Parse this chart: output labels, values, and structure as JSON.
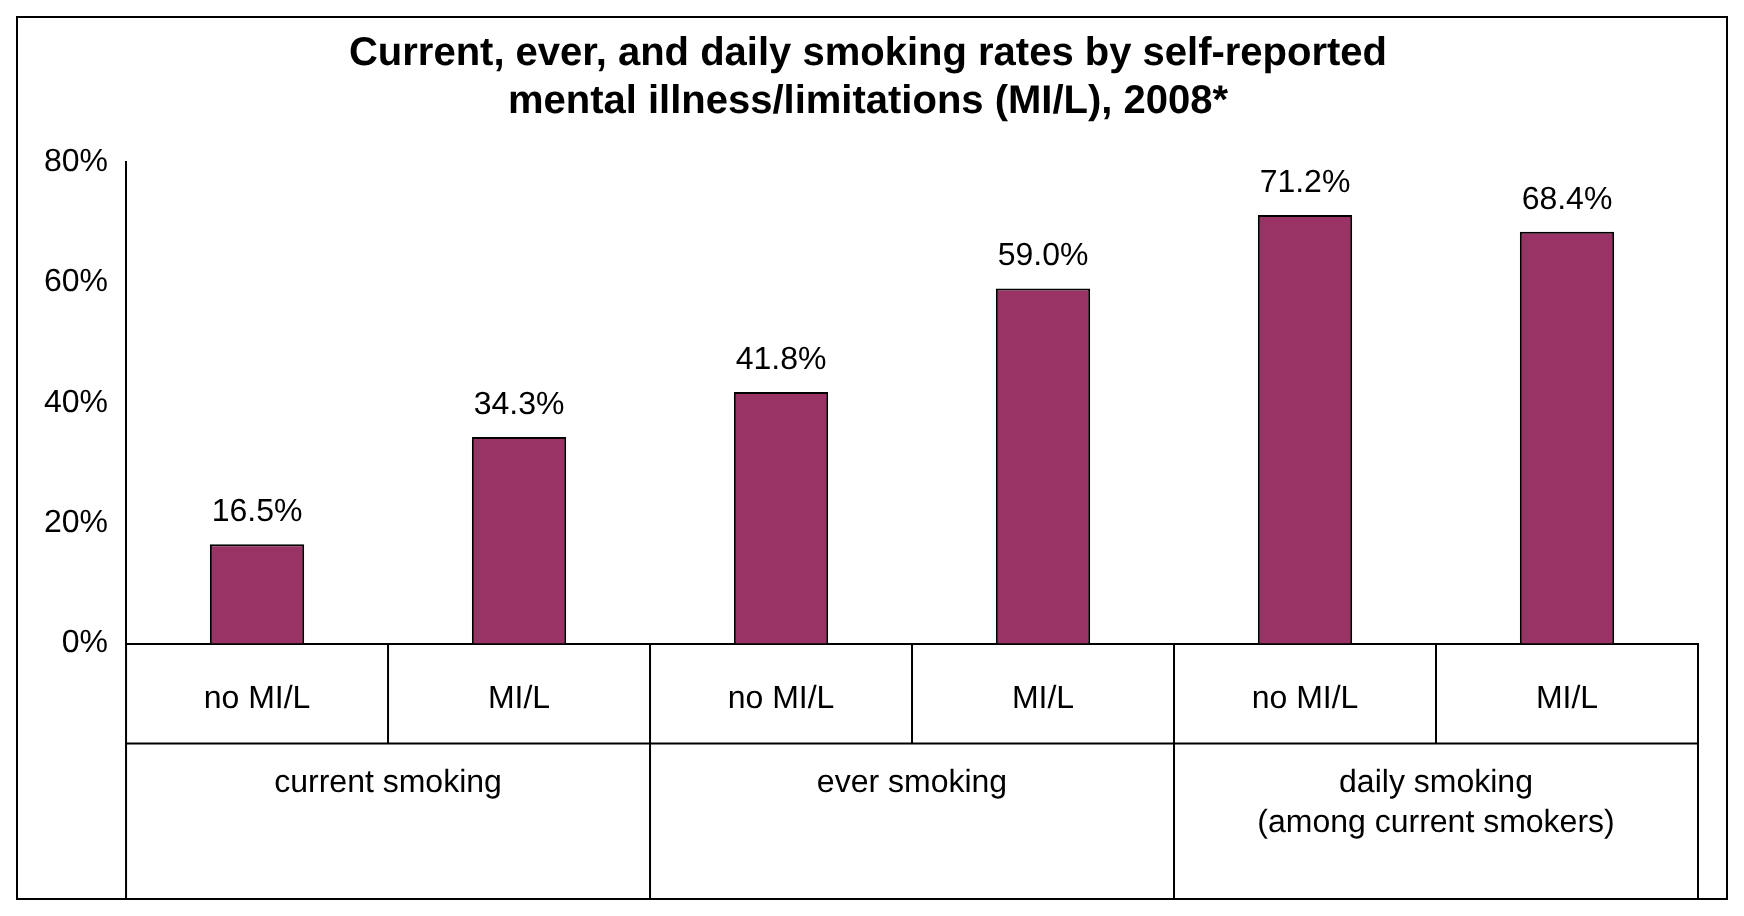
{
  "chart_data": {
    "type": "bar",
    "title": "Current, ever, and daily smoking rates by self-reported mental illness/limitations (MI/L), 2008*",
    "categories": [
      "no MI/L",
      "MI/L",
      "no MI/L",
      "MI/L",
      "no MI/L",
      "MI/L"
    ],
    "values": [
      16.5,
      34.3,
      41.8,
      59.0,
      71.2,
      68.4
    ],
    "value_labels": [
      "16.5%",
      "34.3%",
      "41.8%",
      "59.0%",
      "71.2%",
      "68.4%"
    ],
    "color": "#993366",
    "ylim": [
      0,
      80
    ],
    "yticks": [
      {
        "value": 0,
        "label": "0%"
      },
      {
        "value": 20,
        "label": "20%"
      },
      {
        "value": 40,
        "label": "40%"
      },
      {
        "value": 60,
        "label": "60%"
      },
      {
        "value": 80,
        "label": "80%"
      }
    ],
    "annotations": [
      "current smoking",
      "ever smoking",
      "daily smoking\n(among current smokers)"
    ],
    "grid": false,
    "legend": false
  }
}
